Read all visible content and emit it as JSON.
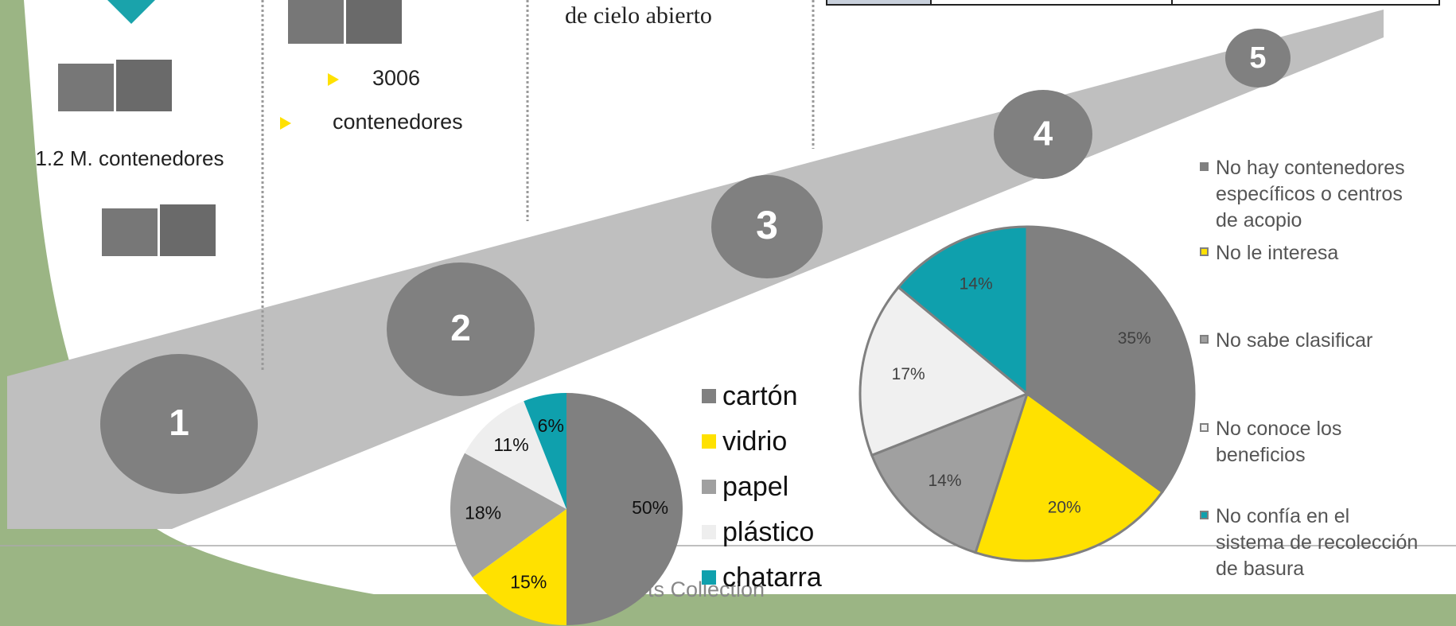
{
  "slide": {
    "steps": [
      "1",
      "2",
      "3",
      "4",
      "5"
    ],
    "container_total": "1.2 M. contenedores",
    "count": "3006",
    "count_unit": "contenedores",
    "site_text": "de cielo abierto",
    "watermark": "arts Collection"
  },
  "chart_data": [
    {
      "type": "pie",
      "categories": [
        "cartón",
        "vidrio",
        "papel",
        "plástico",
        "chatarra"
      ],
      "values": [
        50,
        15,
        18,
        11,
        6
      ],
      "value_labels": [
        "50%",
        "15%",
        "18%",
        "11%",
        "6%"
      ],
      "colors": [
        "#808080",
        "#ffe100",
        "#a0a0a0",
        "#eeeeee",
        "#0fa0ad"
      ]
    },
    {
      "type": "pie",
      "categories": [
        "No hay contenedores específicos o centros de acopio",
        "No le interesa",
        "No sabe clasificar",
        "No conoce los beneficios",
        "No confía en el sistema de recolección de basura"
      ],
      "values": [
        35,
        20,
        14,
        17,
        14
      ],
      "value_labels": [
        "35%",
        "20%",
        "14%",
        "17%",
        "14%"
      ],
      "colors": [
        "#808080",
        "#ffe100",
        "#a0a0a0",
        "#f0f0f0",
        "#0fa0ad"
      ]
    }
  ]
}
